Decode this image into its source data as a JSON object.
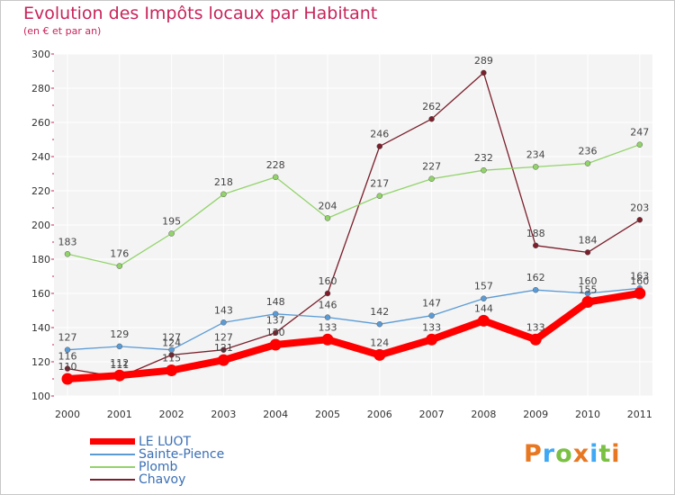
{
  "title": "Evolution des Impôts locaux par Habitant",
  "subtitle": "(en € et par an)",
  "logo_text": "Proxiti",
  "chart_data": {
    "type": "line",
    "title": "Evolution des Impôts locaux par Habitant",
    "subtitle": "(en € et par an)",
    "xlabel": "",
    "ylabel": "",
    "ylim": [
      100,
      300
    ],
    "yticks": [
      100,
      120,
      140,
      160,
      180,
      200,
      220,
      240,
      260,
      280,
      300
    ],
    "categories": [
      "2000",
      "2001",
      "2002",
      "2003",
      "2004",
      "2005",
      "2006",
      "2007",
      "2008",
      "2009",
      "2010",
      "2011"
    ],
    "grid": true,
    "legend": "bottom-left",
    "series": [
      {
        "name": "Chavoy",
        "color": "#7a1f2b",
        "values": [
          116,
          111,
          124,
          127,
          137,
          160,
          246,
          262,
          289,
          188,
          184,
          203
        ]
      },
      {
        "name": "Plomb",
        "color": "#92d36a",
        "values": [
          183,
          176,
          195,
          218,
          228,
          204,
          217,
          227,
          232,
          234,
          236,
          247
        ]
      },
      {
        "name": "Sainte-Pience",
        "color": "#5b9bd5",
        "values": [
          127,
          129,
          127,
          143,
          148,
          146,
          142,
          147,
          157,
          162,
          160,
          163
        ]
      },
      {
        "name": "LE LUOT",
        "color": "#ff0000",
        "values": [
          110,
          112,
          115,
          121,
          130,
          133,
          124,
          133,
          144,
          133,
          155,
          160
        ]
      }
    ],
    "legend_order": [
      "LE LUOT",
      "Sainte-Pience",
      "Plomb",
      "Chavoy"
    ]
  }
}
